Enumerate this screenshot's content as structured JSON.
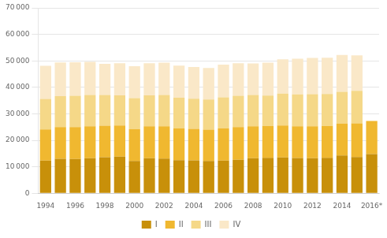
{
  "chart_data": {
    "type": "bar",
    "stacked": true,
    "grid": true,
    "legend": "bottom",
    "categories": [
      "1994",
      null,
      "1996",
      null,
      "1998",
      null,
      "2000",
      null,
      "2002",
      null,
      "2004",
      null,
      "2006",
      null,
      "2008",
      null,
      "2010",
      null,
      "2012",
      null,
      "2014",
      null,
      "2016*"
    ],
    "series": [
      {
        "name": "I",
        "color": "#c8900a",
        "values": [
          12300,
          13000,
          12900,
          13200,
          13600,
          13800,
          12200,
          13200,
          13100,
          12500,
          12400,
          12200,
          12300,
          12600,
          13200,
          13400,
          13500,
          13300,
          13200,
          13400,
          14300,
          13700,
          14800
        ]
      },
      {
        "name": "II",
        "color": "#f0b830",
        "values": [
          11800,
          12000,
          12100,
          12100,
          11900,
          11800,
          12000,
          12100,
          12200,
          12000,
          11900,
          11800,
          12200,
          12400,
          12100,
          12000,
          12100,
          12000,
          12100,
          12000,
          12000,
          12700,
          12500
        ]
      },
      {
        "name": "III",
        "color": "#f5d888",
        "values": [
          11500,
          11700,
          11800,
          11800,
          11600,
          11400,
          11700,
          11700,
          11800,
          11600,
          11400,
          11400,
          11700,
          11800,
          11800,
          11500,
          12000,
          12000,
          12100,
          12100,
          12000,
          12300,
          0
        ]
      },
      {
        "name": "IV",
        "color": "#fae8c8",
        "values": [
          12500,
          12700,
          12700,
          12500,
          11800,
          12100,
          12100,
          12100,
          12200,
          12100,
          12000,
          11900,
          12400,
          12300,
          11900,
          12400,
          13000,
          13500,
          13700,
          13700,
          13900,
          13400,
          0
        ]
      }
    ],
    "ylim": [
      0,
      70000
    ],
    "yticks": [
      0,
      {
        "value": 10000,
        "label": "10 000"
      },
      {
        "value": 20000,
        "label": "20 000"
      },
      {
        "value": 30000,
        "label": "30 000"
      },
      {
        "value": 40000,
        "label": "40 000"
      },
      {
        "value": 50000,
        "label": "50 000"
      },
      {
        "value": 60000,
        "label": "60 000"
      },
      {
        "value": 70000,
        "label": "70 000"
      }
    ]
  }
}
